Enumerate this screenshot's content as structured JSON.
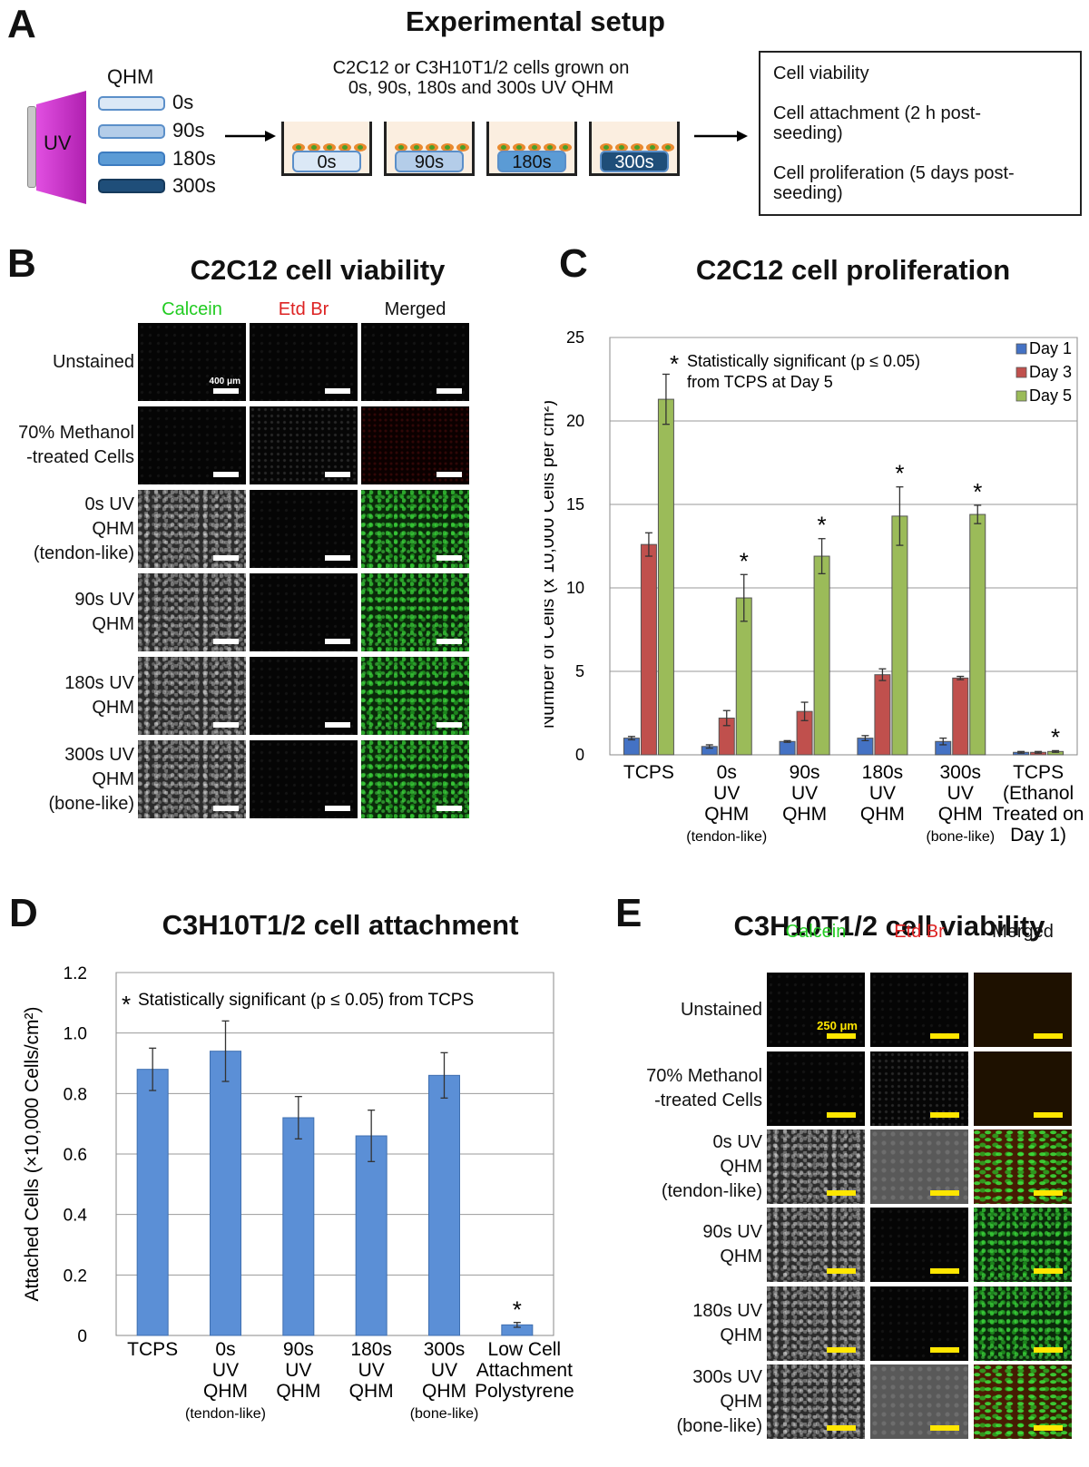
{
  "panelA": {
    "letter": "A",
    "title": "Experimental setup",
    "uv_label": "UV",
    "qhm_label": "QHM",
    "qhm_times": [
      "0s",
      "90s",
      "180s",
      "300s"
    ],
    "cells_text_line1": "C2C12 or C3H10T1/2 cells grown on",
    "cells_text_line2": "0s, 90s, 180s and 300s UV QHM",
    "wells": [
      "0s",
      "90s",
      "180s",
      "300s"
    ],
    "assays": [
      "Cell viability",
      "Cell attachment (2 h post-",
      "seeding)",
      "Cell proliferation (5 days post-",
      "seeding)"
    ],
    "colors": {
      "uv": "#cc33cc",
      "q0": "#dbe8f6",
      "q90": "#b4cde9",
      "q180": "#5b9bd5",
      "q300": "#1f4e79"
    }
  },
  "panelB": {
    "letter": "B",
    "title": "C2C12 cell viability",
    "columns": [
      "Calcein",
      "Etd Br",
      "Merged"
    ],
    "column_colors": [
      "#22cc22",
      "#dd2222",
      "#111111"
    ],
    "rows": [
      [
        "Unstained"
      ],
      [
        "70% Methanol",
        "-treated Cells"
      ],
      [
        "0s UV",
        "QHM",
        "(tendon-like)"
      ],
      [
        "90s UV",
        "QHM"
      ],
      [
        "180s UV",
        "QHM"
      ],
      [
        "300s UV",
        "QHM",
        "(bone-like)"
      ]
    ],
    "scale_label": "400 μm"
  },
  "panelC": {
    "letter": "C",
    "title": "C2C12 cell proliferation",
    "annotation_line1": "Statistically significant (p ≤ 0.05)",
    "annotation_line2": "from TCPS at Day 5",
    "star": "*"
  },
  "panelD": {
    "letter": "D",
    "title": "C3H10T1/2 cell attachment",
    "annotation": "Statistically significant (p ≤ 0.05) from TCPS",
    "star": "*"
  },
  "panelE": {
    "letter": "E",
    "title": "C3H10T1/2 cell viability",
    "columns": [
      "Calcein",
      "Etd Br",
      "Merged"
    ],
    "column_colors": [
      "#22cc22",
      "#dd2222",
      "#111111"
    ],
    "rows": [
      [
        "Unstained"
      ],
      [
        "70% Methanol",
        "-treated Cells"
      ],
      [
        "0s UV",
        "QHM",
        "(tendon-like)"
      ],
      [
        "90s UV",
        "QHM"
      ],
      [
        "180s UV",
        "QHM"
      ],
      [
        "300s UV",
        "QHM",
        "(bone-like)"
      ]
    ],
    "scale_label": "250 μm"
  },
  "chart_data": [
    {
      "type": "bar",
      "title": "C2C12 cell proliferation",
      "ylabel": "Number of Cells (x 10,000 Cells per cm²)",
      "ylim": [
        0,
        25
      ],
      "yticks": [
        0,
        5,
        10,
        15,
        20,
        25
      ],
      "grid": true,
      "legend_position": "top-right",
      "categories": [
        [
          "TCPS"
        ],
        [
          "0s",
          "UV",
          "QHM",
          "(tendon-like)"
        ],
        [
          "90s",
          "UV",
          "QHM"
        ],
        [
          "180s",
          "UV",
          "QHM"
        ],
        [
          "300s",
          "UV",
          "QHM",
          "(bone-like)"
        ],
        [
          "TCPS",
          "(Ethanol",
          "Treated on",
          "Day 1)"
        ]
      ],
      "series": [
        {
          "name": "Day 1",
          "color": "#4472c4",
          "values": [
            1.0,
            0.5,
            0.8,
            1.0,
            0.8,
            0.15
          ],
          "errors": [
            0.1,
            0.1,
            0.05,
            0.15,
            0.2,
            0.05
          ]
        },
        {
          "name": "Day 3",
          "color": "#c0504d",
          "values": [
            12.6,
            2.2,
            2.6,
            4.8,
            4.6,
            0.15
          ],
          "errors": [
            0.7,
            0.45,
            0.55,
            0.35,
            0.1,
            0.05
          ]
        },
        {
          "name": "Day 5",
          "color": "#9bbb59",
          "values": [
            21.3,
            9.4,
            11.9,
            14.3,
            14.4,
            0.2
          ],
          "errors": [
            1.5,
            1.4,
            1.05,
            1.75,
            0.55,
            0.05
          ]
        }
      ],
      "significant": [
        false,
        true,
        true,
        true,
        true,
        true
      ]
    },
    {
      "type": "bar",
      "title": "C3H10T1/2 cell attachment",
      "ylabel": "Attached Cells (×10,000 Cells/cm²)",
      "ylim": [
        0,
        1.2
      ],
      "yticks": [
        "0",
        "0.2",
        "0.4",
        "0.6",
        "0.8",
        "1.0",
        "1.2"
      ],
      "grid": true,
      "categories": [
        [
          "TCPS"
        ],
        [
          "0s",
          "UV",
          "QHM",
          "(tendon-like)"
        ],
        [
          "90s",
          "UV",
          "QHM"
        ],
        [
          "180s",
          "UV",
          "QHM"
        ],
        [
          "300s",
          "UV",
          "QHM",
          "(bone-like)"
        ],
        [
          "Low Cell",
          "Attachment",
          "Polystyrene"
        ]
      ],
      "series": [
        {
          "color": "#5b8fd6",
          "values": [
            0.88,
            0.94,
            0.72,
            0.66,
            0.86,
            0.035
          ],
          "errors": [
            0.07,
            0.1,
            0.07,
            0.085,
            0.075,
            0.008
          ]
        }
      ],
      "significant": [
        false,
        false,
        false,
        false,
        false,
        true
      ]
    }
  ]
}
